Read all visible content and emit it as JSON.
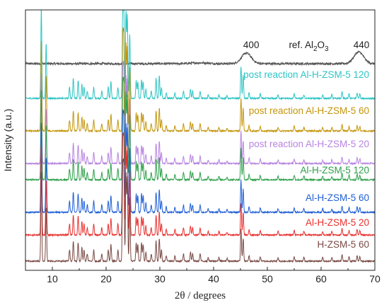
{
  "chart_data": {
    "type": "line",
    "xlabel": "2θ / degrees",
    "ylabel": "Intensity (a.u.)",
    "xlim": [
      5,
      70
    ],
    "xticks": [
      10,
      20,
      30,
      40,
      50,
      60,
      70
    ],
    "y_ticks_shown": false,
    "grid": false,
    "legend": "none (labels placed at right above each trace)",
    "mfi_peaks": [
      {
        "x": 7.95,
        "h": 1.0
      },
      {
        "x": 8.85,
        "h": 0.6
      },
      {
        "x": 13.2,
        "h": 0.12
      },
      {
        "x": 13.9,
        "h": 0.22
      },
      {
        "x": 14.8,
        "h": 0.2
      },
      {
        "x": 15.5,
        "h": 0.15
      },
      {
        "x": 15.9,
        "h": 0.12
      },
      {
        "x": 16.5,
        "h": 0.08
      },
      {
        "x": 17.7,
        "h": 0.12
      },
      {
        "x": 19.2,
        "h": 0.08
      },
      {
        "x": 20.4,
        "h": 0.12
      },
      {
        "x": 20.9,
        "h": 0.18
      },
      {
        "x": 22.2,
        "h": 0.12
      },
      {
        "x": 23.1,
        "h": 1.0
      },
      {
        "x": 23.3,
        "h": 1.0
      },
      {
        "x": 23.7,
        "h": 0.95
      },
      {
        "x": 23.95,
        "h": 0.9
      },
      {
        "x": 24.4,
        "h": 0.7
      },
      {
        "x": 25.6,
        "h": 0.2
      },
      {
        "x": 25.9,
        "h": 0.18
      },
      {
        "x": 26.6,
        "h": 0.2
      },
      {
        "x": 26.9,
        "h": 0.18
      },
      {
        "x": 27.4,
        "h": 0.1
      },
      {
        "x": 28.4,
        "h": 0.08
      },
      {
        "x": 29.3,
        "h": 0.22
      },
      {
        "x": 29.9,
        "h": 0.25
      },
      {
        "x": 30.3,
        "h": 0.12
      },
      {
        "x": 31.2,
        "h": 0.06
      },
      {
        "x": 32.8,
        "h": 0.06
      },
      {
        "x": 34.4,
        "h": 0.08
      },
      {
        "x": 35.7,
        "h": 0.1
      },
      {
        "x": 36.1,
        "h": 0.08
      },
      {
        "x": 37.5,
        "h": 0.08
      },
      {
        "x": 39.0,
        "h": 0.04
      },
      {
        "x": 41.0,
        "h": 0.04
      },
      {
        "x": 42.5,
        "h": 0.03
      },
      {
        "x": 45.1,
        "h": 0.35
      },
      {
        "x": 45.5,
        "h": 0.25
      },
      {
        "x": 46.6,
        "h": 0.06
      },
      {
        "x": 48.7,
        "h": 0.05
      },
      {
        "x": 52.0,
        "h": 0.04
      },
      {
        "x": 55.0,
        "h": 0.05
      },
      {
        "x": 56.8,
        "h": 0.04
      },
      {
        "x": 60.3,
        "h": 0.04
      },
      {
        "x": 62.0,
        "h": 0.04
      },
      {
        "x": 63.9,
        "h": 0.07
      },
      {
        "x": 65.2,
        "h": 0.05
      },
      {
        "x": 66.7,
        "h": 0.06
      },
      {
        "x": 67.2,
        "h": 0.05
      }
    ],
    "alumina_peaks": [
      {
        "x": 37.5,
        "h": 0.04
      },
      {
        "x": 46.1,
        "h": 0.5
      },
      {
        "x": 67.0,
        "h": 0.55
      }
    ],
    "series": [
      {
        "name": "ref. Al",
        "name_subscript": "2",
        "name_tail": "O",
        "name_tail_subscript": "3",
        "color": "#555555",
        "kind": "alumina"
      },
      {
        "name": "post reaction Al-H-ZSM-5 120",
        "color": "#2ec4c4",
        "kind": "mfi"
      },
      {
        "name": "post reaction Al-H-ZSM-5 60",
        "color": "#c4950a",
        "kind": "mfi"
      },
      {
        "name": "post reaction Al-H-ZSM-5 20",
        "color": "#b784e0",
        "kind": "mfi"
      },
      {
        "name": "Al-H-ZSM-5 120",
        "color": "#2ea04b",
        "kind": "mfi"
      },
      {
        "name": "Al-H-ZSM-5 60",
        "color": "#1f5fd6",
        "kind": "mfi"
      },
      {
        "name": "Al-H-ZSM-5 20",
        "color": "#e8302e",
        "kind": "mfi"
      },
      {
        "name": "H-ZSM-5 60",
        "color": "#7a4a44",
        "kind": "mfi"
      }
    ],
    "annotations": [
      {
        "text": "400",
        "x": 47
      },
      {
        "text": "440",
        "x": 67.5
      }
    ]
  }
}
